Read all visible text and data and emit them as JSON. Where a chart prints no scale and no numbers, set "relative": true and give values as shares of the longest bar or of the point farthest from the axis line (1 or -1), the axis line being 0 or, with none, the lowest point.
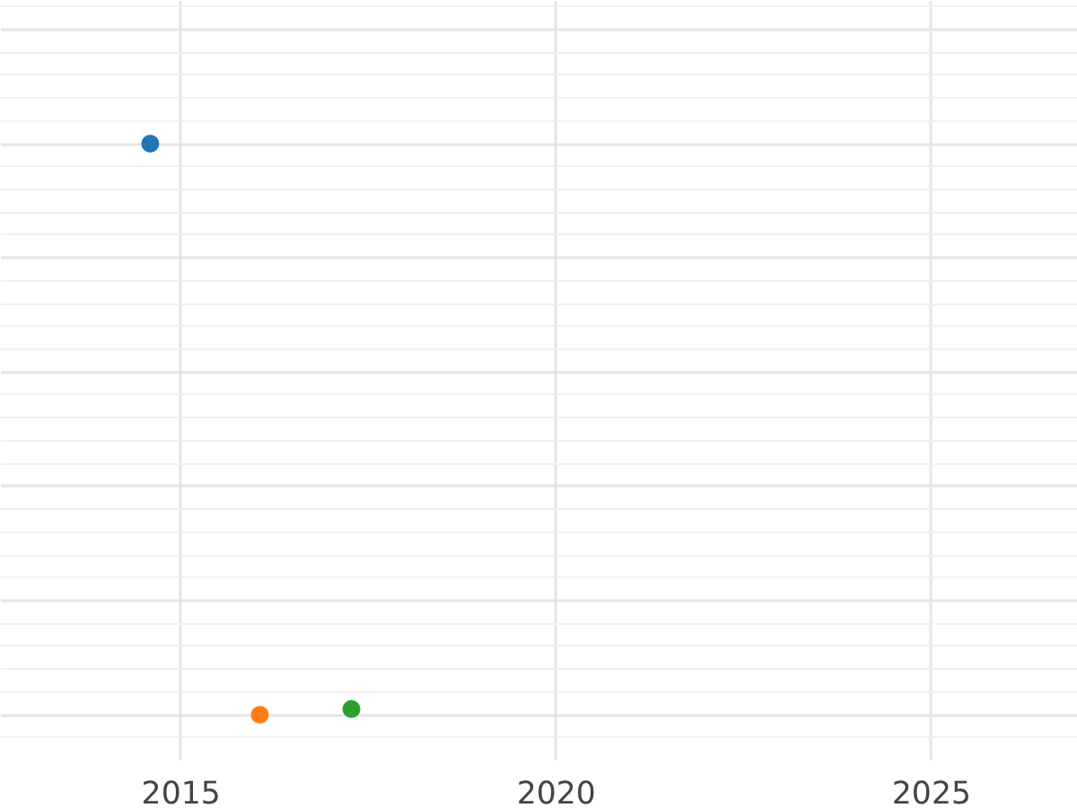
{
  "chart_data": {
    "type": "scatter",
    "relative": true,
    "x": [
      2014.59,
      2016.05,
      2017.27
    ],
    "values": [
      1,
      0,
      0.01
    ],
    "colors": [
      "#1f77b4",
      "#ff7f0e",
      "#2ca02c"
    ],
    "xlim": [
      2012.6,
      2026.95
    ],
    "xticks": [
      2015,
      2020,
      2025
    ],
    "grid": true,
    "marker": "circle",
    "tick_labels": "x"
  }
}
